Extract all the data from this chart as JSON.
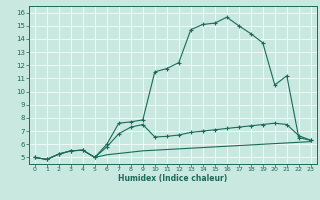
{
  "bg_color": "#c8e8e0",
  "line_color": "#1a6b5a",
  "xlabel": "Humidex (Indice chaleur)",
  "xlim": [
    -0.5,
    23.5
  ],
  "ylim": [
    4.5,
    16.5
  ],
  "xticks": [
    0,
    1,
    2,
    3,
    4,
    5,
    6,
    7,
    8,
    9,
    10,
    11,
    12,
    13,
    14,
    15,
    16,
    17,
    18,
    19,
    20,
    21,
    22,
    23
  ],
  "yticks": [
    5,
    6,
    7,
    8,
    9,
    10,
    11,
    12,
    13,
    14,
    15,
    16
  ],
  "series1_x": [
    0,
    1,
    2,
    3,
    4,
    5,
    6,
    7,
    8,
    9,
    10,
    11,
    12,
    13,
    14,
    15,
    16,
    17,
    18,
    19,
    20,
    21,
    22,
    23
  ],
  "series1_y": [
    5.0,
    4.85,
    5.25,
    5.5,
    5.55,
    5.0,
    6.0,
    7.6,
    7.7,
    7.85,
    11.5,
    11.75,
    12.2,
    14.7,
    15.1,
    15.2,
    15.65,
    15.0,
    14.4,
    13.7,
    10.5,
    11.2,
    6.5,
    6.3
  ],
  "series2_x": [
    0,
    1,
    2,
    3,
    4,
    5,
    6,
    7,
    8,
    9,
    10,
    11,
    12,
    13,
    14,
    15,
    16,
    17,
    18,
    19,
    20,
    21,
    22,
    23
  ],
  "series2_y": [
    5.0,
    4.85,
    5.25,
    5.5,
    5.55,
    5.0,
    5.2,
    5.3,
    5.4,
    5.5,
    5.55,
    5.6,
    5.65,
    5.7,
    5.75,
    5.8,
    5.85,
    5.9,
    5.95,
    6.0,
    6.05,
    6.1,
    6.15,
    6.2
  ],
  "series3_x": [
    0,
    1,
    2,
    3,
    4,
    5,
    6,
    7,
    8,
    9,
    10,
    11,
    12,
    13,
    14,
    15,
    16,
    17,
    18,
    19,
    20,
    21,
    22,
    23
  ],
  "series3_y": [
    5.0,
    4.85,
    5.25,
    5.5,
    5.55,
    5.0,
    5.8,
    6.8,
    7.3,
    7.5,
    6.55,
    6.6,
    6.7,
    6.9,
    7.0,
    7.1,
    7.2,
    7.3,
    7.4,
    7.5,
    7.6,
    7.5,
    6.65,
    6.3
  ]
}
